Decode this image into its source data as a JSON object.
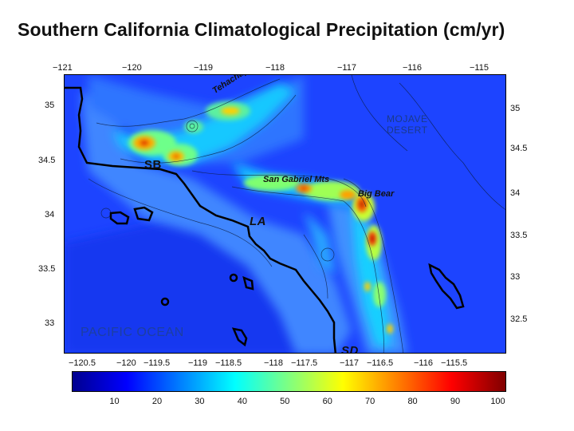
{
  "title": "Southern California Climatological Precipitation (cm/yr)",
  "map": {
    "top_lon_ticks": [
      "−121",
      "−120",
      "−119",
      "−118",
      "−117",
      "−116",
      "−115"
    ],
    "bottom_lon_ticks": [
      "−120.5",
      "−120",
      "−119.5",
      "−119",
      "−118.5",
      "−118",
      "−117.5",
      "−117",
      "−116.5",
      "−116",
      "−115.5"
    ],
    "left_lat_ticks": [
      "35",
      "34.5",
      "34",
      "33.5",
      "33"
    ],
    "right_lat_ticks": [
      "35",
      "34.5",
      "34",
      "33.5",
      "33",
      "32.5"
    ],
    "labels": {
      "santa_barbara": "SB",
      "los_angeles": "LA",
      "san_diego": "SD",
      "tehachapi": "Tehachapi Mts",
      "san_gabriel": "San Gabriel Mts",
      "big_bear": "Big Bear",
      "mojave_line1": "MOJAVE",
      "mojave_line2": "DESERT",
      "ocean": "PACIFIC OCEAN"
    }
  },
  "colorbar": {
    "ticks": [
      "10",
      "20",
      "30",
      "40",
      "50",
      "60",
      "70",
      "80",
      "90",
      "100"
    ],
    "min": 0,
    "max": 102,
    "colors": [
      "#00008f",
      "#0000ff",
      "#0080ff",
      "#00ffff",
      "#80ff80",
      "#ffff00",
      "#ff8000",
      "#ff0000",
      "#800000"
    ]
  }
}
